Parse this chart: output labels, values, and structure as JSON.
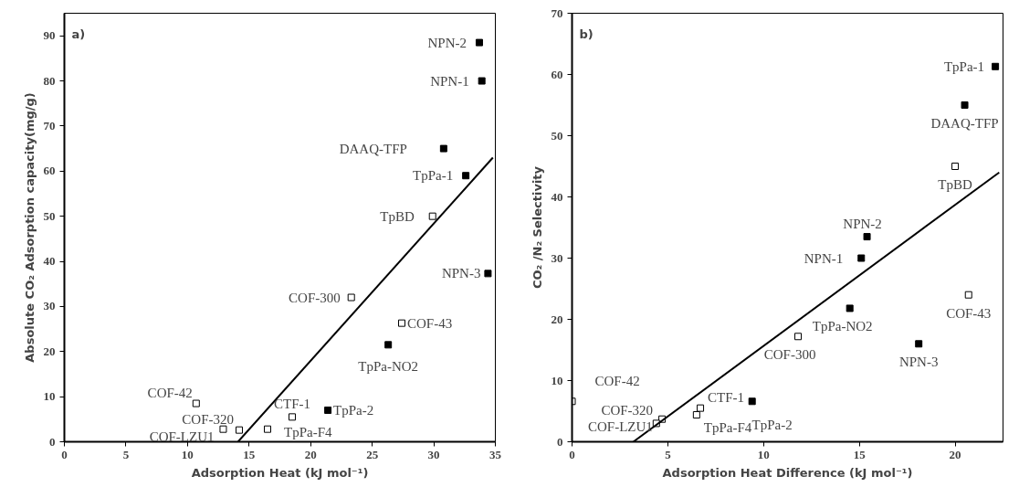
{
  "chart_data": [
    {
      "type": "scatter",
      "xlabel": "Adsorption Heat (kJ mol⁻¹)",
      "ylabel": "Absolute CO₂ Adsorption capacity(mg/g)",
      "xlim": [
        0,
        35
      ],
      "ylim": [
        0,
        95
      ],
      "xticks": [
        0,
        5,
        10,
        15,
        20,
        25,
        30,
        35
      ],
      "yticks": [
        0,
        10,
        20,
        30,
        40,
        50,
        60,
        70,
        80,
        90
      ],
      "grid": false,
      "series": [
        {
          "color": "#000000",
          "marker": "square",
          "x": [
            33.7,
            33.9,
            30.8,
            32.6,
            34.4,
            26.3,
            21.4
          ],
          "values": [
            88.5,
            80,
            65,
            59,
            37.3,
            21.5,
            7
          ]
        },
        {
          "color": "#ffffff",
          "marker": "square",
          "x": [
            29.9,
            23.3,
            27.4,
            10.7,
            18.5,
            14.2,
            12.9,
            16.5
          ],
          "values": [
            50,
            32,
            26.3,
            8.5,
            5.5,
            2.6,
            2.8,
            2.8
          ]
        },
        {
          "type": "line",
          "color": "#000000",
          "x": [
            14.1,
            34.8
          ],
          "values": [
            0,
            63
          ]
        }
      ],
      "annotations": [
        "a)",
        {
          "text": "NPN-2",
          "x": 33.7,
          "y": 88.5
        },
        {
          "text": "NPN-1",
          "x": 33.9,
          "y": 80
        },
        {
          "text": "DAAQ-TFP",
          "x": 30.8,
          "y": 65
        },
        {
          "text": "TpPa-1",
          "x": 32.6,
          "y": 59
        },
        {
          "text": "NPN-3",
          "x": 34.4,
          "y": 37.3
        },
        {
          "text": "TpPa-NO2",
          "x": 26.3,
          "y": 21.5
        },
        {
          "text": "TpPa-2",
          "x": 21.4,
          "y": 7
        },
        {
          "text": "TpBD",
          "x": 29.9,
          "y": 50
        },
        {
          "text": "COF-300",
          "x": 23.3,
          "y": 32
        },
        {
          "text": "COF-43",
          "x": 27.4,
          "y": 26.3
        },
        {
          "text": "COF-42",
          "x": 10.7,
          "y": 8.5
        },
        {
          "text": "CTF-1",
          "x": 18.5,
          "y": 5.5
        },
        {
          "text": "COF-320",
          "x": 14.2,
          "y": 2.6
        },
        {
          "text": "COF-LZU1",
          "x": 12.9,
          "y": 2.8
        },
        {
          "text": "TpPa-F4",
          "x": 16.5,
          "y": 2.8
        }
      ]
    },
    {
      "type": "scatter",
      "xlabel": "Adsorption Heat Difference (kJ mol⁻¹)",
      "ylabel": "CO₂ /N₂ Selectivity",
      "xlim": [
        0,
        22.5
      ],
      "ylim": [
        0,
        70
      ],
      "xticks": [
        0,
        5,
        10,
        15,
        20
      ],
      "yticks": [
        0,
        10,
        20,
        30,
        40,
        50,
        60,
        70
      ],
      "grid": false,
      "series": [
        {
          "color": "#000000",
          "marker": "square",
          "x": [
            22.1,
            20.5,
            15.4,
            15.1,
            14.5,
            18.1,
            9.4
          ],
          "values": [
            61.3,
            55,
            33.5,
            30,
            21.8,
            16,
            6.6
          ]
        },
        {
          "color": "#ffffff",
          "marker": "square",
          "x": [
            20,
            20.7,
            11.8,
            0,
            6.7,
            6.5,
            4.7,
            4.4
          ],
          "values": [
            45,
            24,
            17.2,
            6.6,
            5.5,
            4.4,
            3.7,
            3
          ]
        },
        {
          "type": "line",
          "color": "#000000",
          "x": [
            3.2,
            22.3
          ],
          "values": [
            0,
            44
          ]
        }
      ],
      "annotations": [
        "b)",
        {
          "text": "TpPa-1",
          "x": 22.1,
          "y": 61.3
        },
        {
          "text": "DAAQ-TFP",
          "x": 20.5,
          "y": 55
        },
        {
          "text": "NPN-2",
          "x": 15.4,
          "y": 33.5
        },
        {
          "text": "NPN-1",
          "x": 15.1,
          "y": 30
        },
        {
          "text": "TpPa-NO2",
          "x": 14.5,
          "y": 21.8
        },
        {
          "text": "NPN-3",
          "x": 18.1,
          "y": 16
        },
        {
          "text": "TpPa-2",
          "x": 9.4,
          "y": 6.6
        },
        {
          "text": "TpBD",
          "x": 20,
          "y": 45
        },
        {
          "text": "COF-43",
          "x": 20.7,
          "y": 24
        },
        {
          "text": "COF-300",
          "x": 11.8,
          "y": 17.2
        },
        {
          "text": "COF-42",
          "x": 0,
          "y": 6.6
        },
        {
          "text": "CTF-1",
          "x": 6.7,
          "y": 5.5
        },
        {
          "text": "TpPa-F4",
          "x": 6.5,
          "y": 4.4
        },
        {
          "text": "COF-320",
          "x": 4.7,
          "y": 3.7
        },
        {
          "text": "COF-LZU1",
          "x": 4.4,
          "y": 3
        }
      ]
    }
  ]
}
